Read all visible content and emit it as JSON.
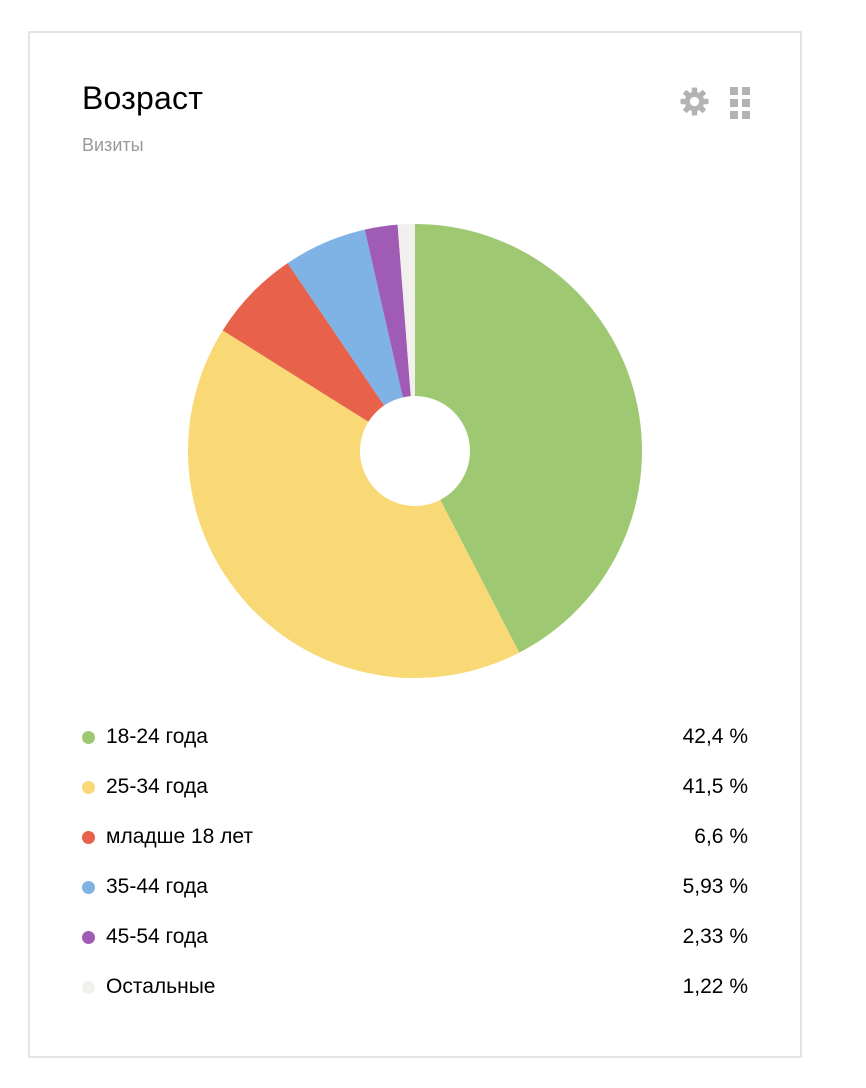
{
  "widget": {
    "title": "Возраст",
    "subtitle": "Визиты",
    "card_border_color": "#e4e4e4",
    "controls": {
      "settings_icon": "gear",
      "drag_handle_icon": "grid-of-squares",
      "icon_color": "#b3b3b3"
    }
  },
  "chart_data": {
    "type": "pie",
    "subtype": "donut",
    "title": "Возраст",
    "metric_label": "Визиты",
    "start_angle_deg": 0,
    "direction": "clockwise",
    "inner_radius_ratio": 0.24,
    "legend_position": "bottom",
    "segments": [
      {
        "label": "18-24 года",
        "value_pct": 42.4,
        "value_display": "42,4 %",
        "color": "#9fc873"
      },
      {
        "label": "25-34 года",
        "value_pct": 41.5,
        "value_display": "41,5 %",
        "color": "#f9d876"
      },
      {
        "label": "младше 18 лет",
        "value_pct": 6.6,
        "value_display": "6,6 %",
        "color": "#e8614a"
      },
      {
        "label": "35-44 года",
        "value_pct": 5.93,
        "value_display": "5,93 %",
        "color": "#7fb2e5"
      },
      {
        "label": "45-54 года",
        "value_pct": 2.33,
        "value_display": "2,33 %",
        "color": "#a05cb5"
      },
      {
        "label": "Остальные",
        "value_pct": 1.22,
        "value_display": "1,22 %",
        "color": "#f2f0ec"
      }
    ]
  }
}
